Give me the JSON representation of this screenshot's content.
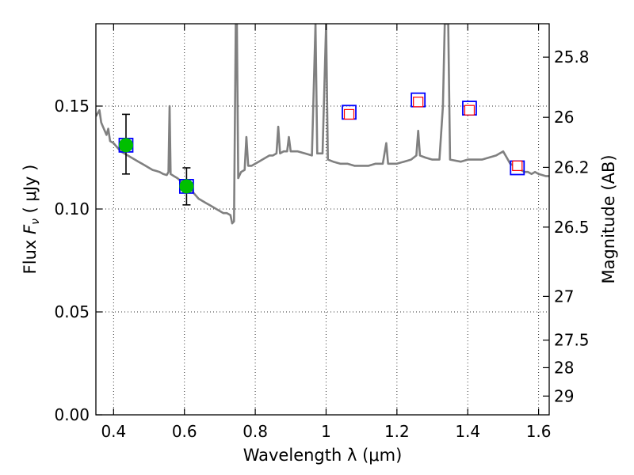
{
  "chart_data": {
    "type": "line",
    "xlabel": "Wavelength  λ (μm)",
    "ylabel": "Flux  F_ν  ( μJy )",
    "ylabel_parts": {
      "prefix": "Flux  ",
      "symbol": "F",
      "subscript": "ν",
      "suffix": "  ( μJy )"
    },
    "y2label": "Magnitude (AB)",
    "xlim": [
      0.35,
      1.63
    ],
    "ylim": [
      0.0,
      0.19
    ],
    "grid": true,
    "x_ticks": [
      {
        "value": 0.4,
        "label": "0.4"
      },
      {
        "value": 0.6,
        "label": "0.6"
      },
      {
        "value": 0.8,
        "label": "0.8"
      },
      {
        "value": 1.0,
        "label": "1"
      },
      {
        "value": 1.2,
        "label": "1.2"
      },
      {
        "value": 1.4,
        "label": "1.4"
      },
      {
        "value": 1.6,
        "label": "1.6"
      }
    ],
    "y_ticks": [
      {
        "value": 0.0,
        "label": "0.00"
      },
      {
        "value": 0.05,
        "label": "0.05"
      },
      {
        "value": 0.1,
        "label": "0.10"
      },
      {
        "value": 0.15,
        "label": "0.15"
      }
    ],
    "y2_ticks": [
      {
        "value": 25.8,
        "label": "25.8"
      },
      {
        "value": 26.0,
        "label": "26"
      },
      {
        "value": 26.2,
        "label": "26.2"
      },
      {
        "value": 26.5,
        "label": "26.5"
      },
      {
        "value": 27.0,
        "label": "27"
      },
      {
        "value": 27.5,
        "label": "27.5"
      },
      {
        "value": 28.0,
        "label": "28"
      },
      {
        "value": 29.0,
        "label": "29"
      }
    ],
    "model_spectrum": {
      "color": "#808080",
      "points": [
        [
          0.35,
          0.145
        ],
        [
          0.36,
          0.148
        ],
        [
          0.365,
          0.142
        ],
        [
          0.37,
          0.14
        ],
        [
          0.38,
          0.136
        ],
        [
          0.385,
          0.139
        ],
        [
          0.39,
          0.133
        ],
        [
          0.4,
          0.132
        ],
        [
          0.41,
          0.13
        ],
        [
          0.42,
          0.128
        ],
        [
          0.43,
          0.127
        ],
        [
          0.44,
          0.126
        ],
        [
          0.45,
          0.125
        ],
        [
          0.46,
          0.124
        ],
        [
          0.47,
          0.123
        ],
        [
          0.48,
          0.122
        ],
        [
          0.49,
          0.121
        ],
        [
          0.5,
          0.12
        ],
        [
          0.51,
          0.119
        ],
        [
          0.52,
          0.1185
        ],
        [
          0.53,
          0.118
        ],
        [
          0.54,
          0.117
        ],
        [
          0.55,
          0.1165
        ],
        [
          0.555,
          0.118
        ],
        [
          0.558,
          0.15
        ],
        [
          0.561,
          0.117
        ],
        [
          0.57,
          0.116
        ],
        [
          0.58,
          0.115
        ],
        [
          0.59,
          0.1135
        ],
        [
          0.6,
          0.112
        ],
        [
          0.61,
          0.111
        ],
        [
          0.62,
          0.109
        ],
        [
          0.63,
          0.107
        ],
        [
          0.64,
          0.105
        ],
        [
          0.65,
          0.104
        ],
        [
          0.66,
          0.103
        ],
        [
          0.67,
          0.102
        ],
        [
          0.68,
          0.101
        ],
        [
          0.69,
          0.1
        ],
        [
          0.7,
          0.099
        ],
        [
          0.71,
          0.098
        ],
        [
          0.72,
          0.098
        ],
        [
          0.73,
          0.097
        ],
        [
          0.735,
          0.093
        ],
        [
          0.74,
          0.094
        ],
        [
          0.745,
          0.19
        ],
        [
          0.748,
          0.19
        ],
        [
          0.752,
          0.115
        ],
        [
          0.76,
          0.118
        ],
        [
          0.77,
          0.119
        ],
        [
          0.775,
          0.135
        ],
        [
          0.78,
          0.121
        ],
        [
          0.79,
          0.121
        ],
        [
          0.8,
          0.122
        ],
        [
          0.81,
          0.123
        ],
        [
          0.82,
          0.124
        ],
        [
          0.83,
          0.125
        ],
        [
          0.84,
          0.126
        ],
        [
          0.85,
          0.126
        ],
        [
          0.86,
          0.127
        ],
        [
          0.865,
          0.14
        ],
        [
          0.87,
          0.127
        ],
        [
          0.88,
          0.128
        ],
        [
          0.89,
          0.128
        ],
        [
          0.895,
          0.135
        ],
        [
          0.9,
          0.128
        ],
        [
          0.92,
          0.128
        ],
        [
          0.94,
          0.127
        ],
        [
          0.96,
          0.126
        ],
        [
          0.97,
          0.19
        ],
        [
          0.975,
          0.127
        ],
        [
          0.99,
          0.127
        ],
        [
          1.0,
          0.19
        ],
        [
          1.005,
          0.124
        ],
        [
          1.02,
          0.123
        ],
        [
          1.04,
          0.122
        ],
        [
          1.06,
          0.122
        ],
        [
          1.08,
          0.121
        ],
        [
          1.1,
          0.121
        ],
        [
          1.12,
          0.121
        ],
        [
          1.14,
          0.122
        ],
        [
          1.16,
          0.122
        ],
        [
          1.17,
          0.132
        ],
        [
          1.175,
          0.122
        ],
        [
          1.2,
          0.122
        ],
        [
          1.22,
          0.123
        ],
        [
          1.24,
          0.124
        ],
        [
          1.255,
          0.126
        ],
        [
          1.26,
          0.138
        ],
        [
          1.265,
          0.126
        ],
        [
          1.28,
          0.125
        ],
        [
          1.3,
          0.124
        ],
        [
          1.32,
          0.124
        ],
        [
          1.33,
          0.15
        ],
        [
          1.335,
          0.19
        ],
        [
          1.34,
          0.19
        ],
        [
          1.345,
          0.19
        ],
        [
          1.35,
          0.124
        ],
        [
          1.38,
          0.123
        ],
        [
          1.4,
          0.124
        ],
        [
          1.42,
          0.124
        ],
        [
          1.44,
          0.124
        ],
        [
          1.46,
          0.125
        ],
        [
          1.48,
          0.126
        ],
        [
          1.5,
          0.128
        ],
        [
          1.51,
          0.125
        ],
        [
          1.52,
          0.122
        ],
        [
          1.53,
          0.121
        ],
        [
          1.54,
          0.12
        ],
        [
          1.55,
          0.119
        ],
        [
          1.56,
          0.118
        ],
        [
          1.57,
          0.118
        ],
        [
          1.58,
          0.117
        ],
        [
          1.59,
          0.118
        ],
        [
          1.6,
          0.117
        ],
        [
          1.62,
          0.116
        ],
        [
          1.63,
          0.116
        ]
      ]
    },
    "model_bands": [
      {
        "x": 0.435,
        "y": 0.131
      },
      {
        "x": 0.606,
        "y": 0.111
      },
      {
        "x": 1.065,
        "y": 0.147
      },
      {
        "x": 1.26,
        "y": 0.153
      },
      {
        "x": 1.405,
        "y": 0.149
      },
      {
        "x": 1.54,
        "y": 0.12
      }
    ],
    "detections": [
      {
        "x": 0.435,
        "y": 0.131,
        "yerr_low": 0.014,
        "yerr_high": 0.015
      },
      {
        "x": 0.606,
        "y": 0.111,
        "yerr_low": 0.009,
        "yerr_high": 0.009
      }
    ],
    "upper_limits": [
      {
        "x": 1.065,
        "y": 0.146
      },
      {
        "x": 1.26,
        "y": 0.152
      },
      {
        "x": 1.405,
        "y": 0.148
      },
      {
        "x": 1.54,
        "y": 0.121
      }
    ],
    "colors": {
      "detection_fill": "#00bf00",
      "band_box": "#0000ff",
      "limit_box": "#ff0000",
      "errorbar": "#000000"
    }
  }
}
